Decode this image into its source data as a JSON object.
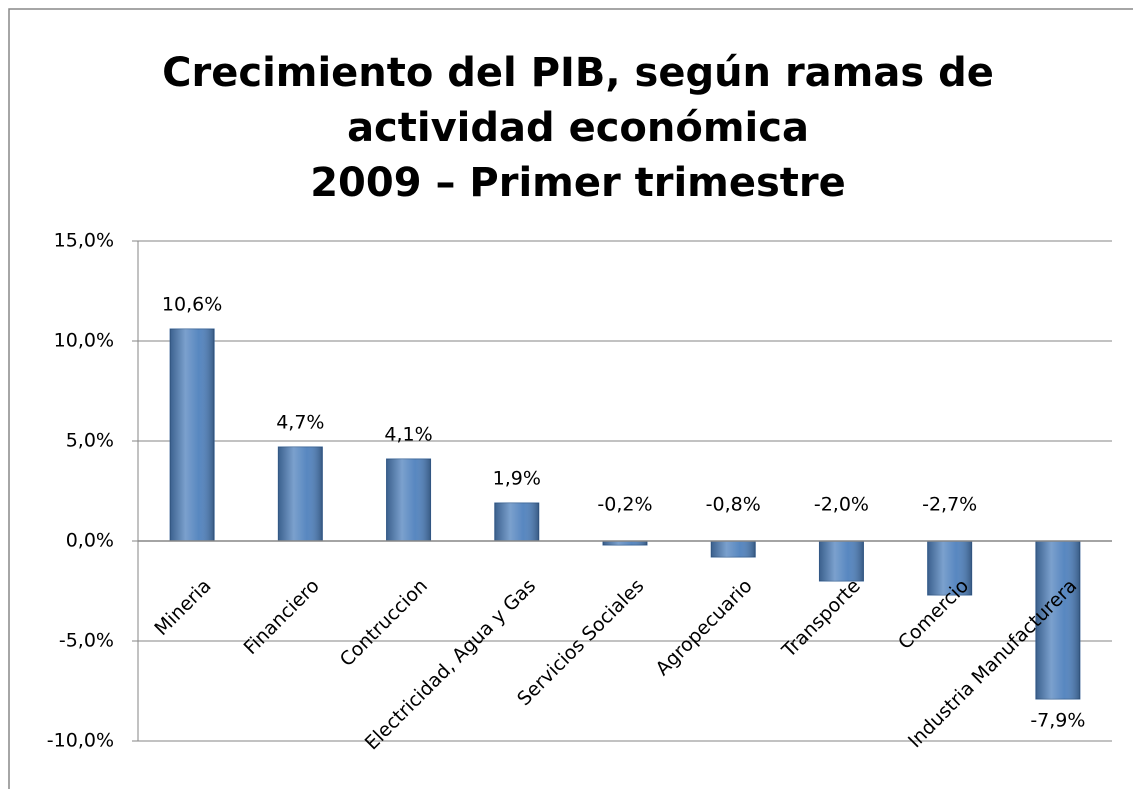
{
  "chart_data": {
    "type": "bar",
    "title": [
      "Crecimiento del PIB, según ramas de",
      "actividad  económica",
      "2009 – Primer trimestre"
    ],
    "categories": [
      "Mineria",
      "Financiero",
      "Contruccion",
      "Electricidad, Agua y Gas",
      "Servicios Sociales",
      "Agropecuario",
      "Transporte",
      "Comercio",
      "Industria Manufacturera"
    ],
    "values": [
      10.6,
      4.7,
      4.1,
      1.9,
      -0.2,
      -0.8,
      -2.0,
      -2.7,
      -7.9
    ],
    "value_labels": [
      "10,6%",
      "4,7%",
      "4,1%",
      "1,9%",
      "-0,2%",
      "-0,8%",
      "-2,0%",
      "-2,7%",
      "-7,9%"
    ],
    "color": "#4f81bd",
    "ylim": [
      -10,
      15
    ],
    "yticks": [
      {
        "value": -10,
        "label": "-10,0%"
      },
      {
        "value": -5,
        "label": "-5,0%"
      },
      {
        "value": 0,
        "label": "0,0%"
      },
      {
        "value": 5,
        "label": "5,0%"
      },
      {
        "value": 10,
        "label": "10,0%"
      },
      {
        "value": 15,
        "label": "15,0%"
      }
    ],
    "grid": true
  }
}
